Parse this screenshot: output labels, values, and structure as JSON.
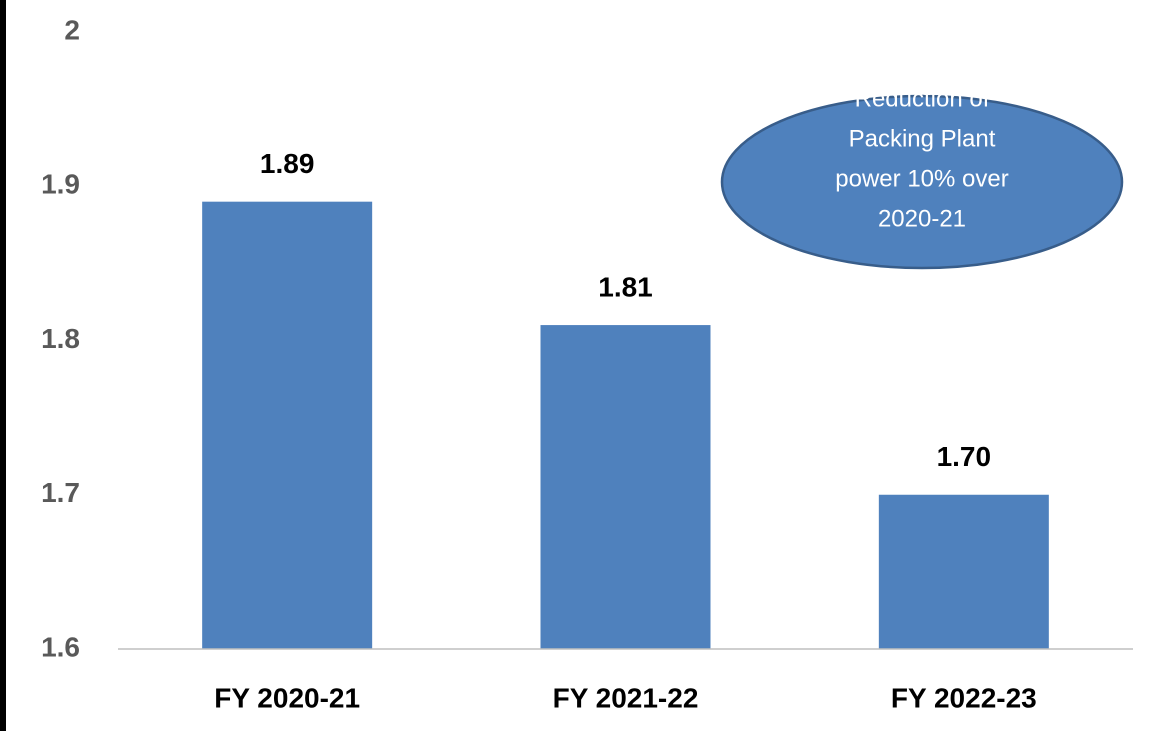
{
  "chart_data": {
    "type": "bar",
    "categories": [
      "FY 2020-21",
      "FY 2021-22",
      "FY 2022-23"
    ],
    "values": [
      1.89,
      1.81,
      1.7
    ],
    "value_labels": [
      "1.89",
      "1.81",
      "1.70"
    ],
    "color": "#4f81bd",
    "ylim": [
      1.6,
      2
    ],
    "yticks": [
      1.6,
      1.7,
      1.8,
      1.9,
      2
    ],
    "grid": false,
    "annotation": [
      "Reduction of",
      "Packing Plant",
      "power 10% over",
      "2020-21"
    ]
  }
}
